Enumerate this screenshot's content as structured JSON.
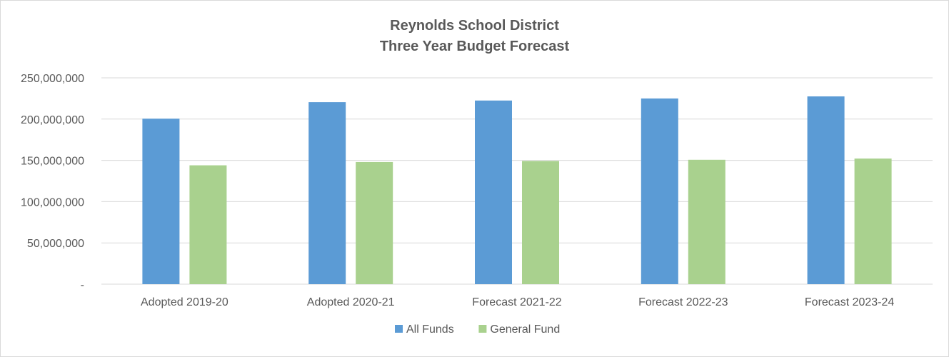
{
  "chart_data": {
    "type": "bar",
    "title": "Reynolds School District",
    "subtitle": "Three Year Budget Forecast",
    "categories": [
      "Adopted 2019-20",
      "Adopted 2020-21",
      "Forecast 2021-22",
      "Forecast 2022-23",
      "Forecast 2023-24"
    ],
    "series": [
      {
        "name": "All Funds",
        "color": "#5b9bd5",
        "values": [
          200500000,
          220500000,
          222500000,
          225000000,
          227500000
        ]
      },
      {
        "name": "General Fund",
        "color": "#a9d18e",
        "values": [
          144000000,
          148000000,
          149300000,
          150700000,
          152200000
        ]
      }
    ],
    "ylim": [
      0,
      250000000
    ],
    "yticks": [
      0,
      50000000,
      100000000,
      150000000,
      200000000,
      250000000
    ],
    "ytick_labels": [
      "-",
      "50,000,000",
      "100,000,000",
      "150,000,000",
      "200,000,000",
      "250,000,000"
    ],
    "xlabel": "",
    "ylabel": "",
    "grid": true,
    "legend_position": "bottom"
  }
}
